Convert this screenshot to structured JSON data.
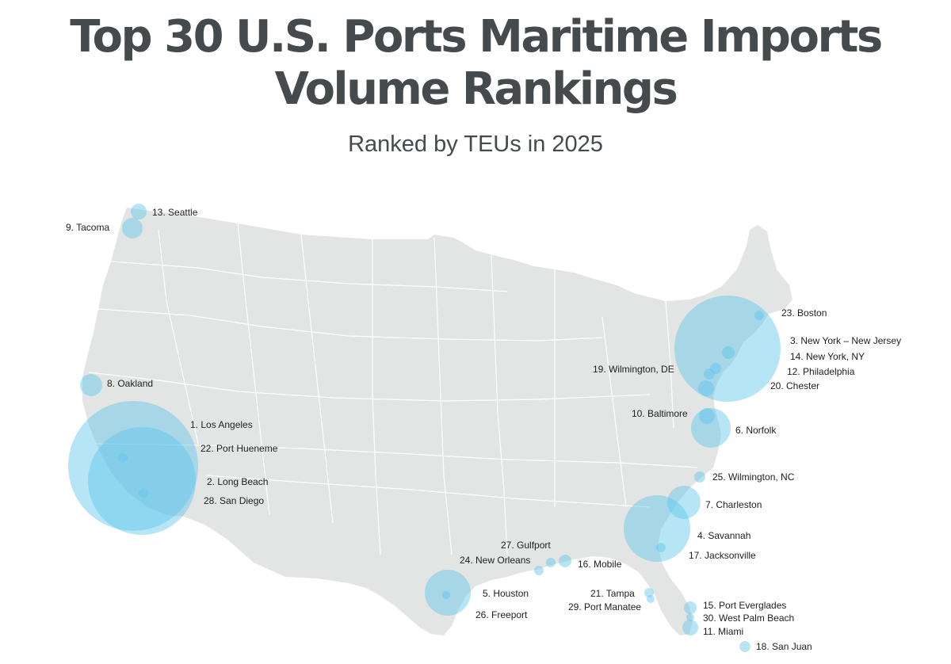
{
  "header": {
    "title_line1": "Top 30 U.S. Ports Maritime Imports",
    "title_line2": "Volume Rankings",
    "subtitle": "Ranked by TEUs in 2025"
  },
  "colors": {
    "bubble": "#5ec5ec",
    "land": "#e3e4e4",
    "borders": "#ffffff",
    "text": "#454a4d"
  },
  "ports": [
    {
      "rank": "1",
      "label": "1. Los Angeles"
    },
    {
      "rank": "2",
      "label": "2. Long Beach"
    },
    {
      "rank": "3",
      "label": "3. New York  – New Jersey"
    },
    {
      "rank": "4",
      "label": "4. Savannah"
    },
    {
      "rank": "5",
      "label": "5. Houston"
    },
    {
      "rank": "6",
      "label": "6. Norfolk"
    },
    {
      "rank": "7",
      "label": "7. Charleston"
    },
    {
      "rank": "8",
      "label": "8. Oakland"
    },
    {
      "rank": "9",
      "label": "9. Tacoma"
    },
    {
      "rank": "10",
      "label": "10. Baltimore"
    },
    {
      "rank": "11",
      "label": "11. Miami"
    },
    {
      "rank": "12",
      "label": "12. Philadelphia"
    },
    {
      "rank": "13",
      "label": "13. Seattle"
    },
    {
      "rank": "14",
      "label": "14. New York, NY"
    },
    {
      "rank": "15",
      "label": "15. Port Everglades"
    },
    {
      "rank": "16",
      "label": "16. Mobile"
    },
    {
      "rank": "17",
      "label": "17. Jacksonville"
    },
    {
      "rank": "18",
      "label": "18. San Juan"
    },
    {
      "rank": "19",
      "label": "19. Wilmington, DE"
    },
    {
      "rank": "20",
      "label": "20. Chester"
    },
    {
      "rank": "21",
      "label": "21. Tampa"
    },
    {
      "rank": "22",
      "label": "22. Port Hueneme"
    },
    {
      "rank": "23",
      "label": "23. Boston"
    },
    {
      "rank": "24",
      "label": "24. New Orleans"
    },
    {
      "rank": "25",
      "label": "25. Wilmington, NC"
    },
    {
      "rank": "26",
      "label": "26. Freeport"
    },
    {
      "rank": "27",
      "label": "27. Gulfport"
    },
    {
      "rank": "28",
      "label": "28. San Diego"
    },
    {
      "rank": "29",
      "label": "29. Port Manatee"
    },
    {
      "rank": "30",
      "label": "30. West Palm Beach"
    }
  ]
}
